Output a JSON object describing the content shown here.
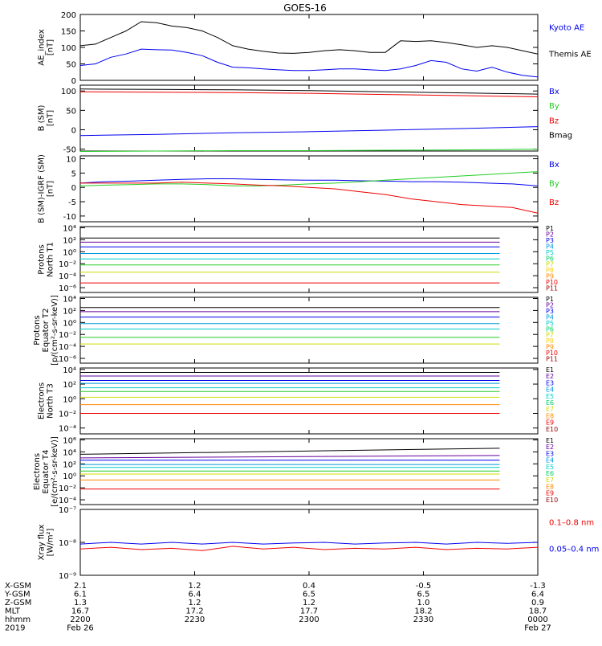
{
  "title": "GOES-16",
  "colors": {
    "black": "#000000",
    "blue": "#0000ee",
    "green": "#22cc22",
    "red": "#ee0000"
  },
  "chart_data": [
    {
      "type": "line",
      "ylabel": [
        "AE_index",
        "[nT]"
      ],
      "ylim": [
        0,
        200
      ],
      "yticks": [
        0,
        50,
        100,
        150,
        200
      ],
      "yticklabels": [
        "0",
        "50",
        "100",
        "150",
        "200"
      ],
      "x": [
        0,
        6,
        12,
        18,
        24,
        30,
        36,
        42,
        48,
        54,
        60,
        66,
        72,
        78,
        84,
        90,
        96,
        102,
        108,
        114,
        120,
        126,
        132,
        138,
        144,
        150,
        156,
        162,
        168,
        174,
        180
      ],
      "legend": [
        {
          "label": "Kyoto AE",
          "color": "#0000ee"
        },
        {
          "label": "Themis AE",
          "color": "#000000"
        }
      ],
      "series": [
        {
          "name": "Themis AE",
          "color": "#000000",
          "values": [
            105,
            110,
            130,
            150,
            178,
            175,
            165,
            160,
            150,
            130,
            105,
            95,
            88,
            83,
            82,
            85,
            90,
            93,
            90,
            85,
            85,
            120,
            118,
            120,
            115,
            108,
            100,
            105,
            100,
            90,
            80
          ]
        },
        {
          "name": "Kyoto AE",
          "color": "#0000ee",
          "values": [
            45,
            50,
            70,
            80,
            95,
            93,
            92,
            85,
            75,
            55,
            40,
            38,
            35,
            32,
            30,
            30,
            32,
            35,
            35,
            32,
            30,
            35,
            45,
            60,
            55,
            35,
            28,
            40,
            25,
            15,
            10
          ]
        }
      ]
    },
    {
      "type": "line",
      "ylabel": [
        "B (SM)",
        "[nT]"
      ],
      "ylim": [
        -55,
        115
      ],
      "yticks": [
        -50,
        0,
        50,
        100
      ],
      "yticklabels": [
        "-50",
        "0",
        "50",
        "100"
      ],
      "x": [
        0,
        30,
        60,
        90,
        120,
        150,
        180
      ],
      "legend": [
        {
          "label": "Bx",
          "color": "#0000ee"
        },
        {
          "label": "By",
          "color": "#22cc22"
        },
        {
          "label": "Bz",
          "color": "#ee0000"
        },
        {
          "label": "Bmag",
          "color": "#000000"
        }
      ],
      "series": [
        {
          "name": "Bmag",
          "color": "#000000",
          "values": [
            105,
            104,
            103,
            101,
            98,
            95,
            92
          ]
        },
        {
          "name": "Bz",
          "color": "#ee0000",
          "values": [
            98,
            97,
            96,
            94,
            91,
            88,
            85
          ]
        },
        {
          "name": "Bx",
          "color": "#0000ee",
          "values": [
            -15,
            -12,
            -8,
            -5,
            -1,
            3,
            8
          ]
        },
        {
          "name": "By",
          "color": "#22cc22",
          "values": [
            -56,
            -55,
            -54,
            -54,
            -53,
            -52,
            -50
          ]
        }
      ]
    },
    {
      "type": "line",
      "ylabel": [
        "B (SM)-IGRF (SM)",
        "[nT]"
      ],
      "ylim": [
        -12,
        11
      ],
      "yticks": [
        -10,
        -5,
        0,
        5,
        10
      ],
      "yticklabels": [
        "-10",
        "-5",
        "0",
        "5",
        "10"
      ],
      "x": [
        0,
        10,
        20,
        30,
        40,
        50,
        60,
        70,
        80,
        90,
        100,
        110,
        120,
        130,
        140,
        150,
        160,
        170,
        180
      ],
      "legend": [
        {
          "label": "Bx",
          "color": "#0000ee"
        },
        {
          "label": "By",
          "color": "#22cc22"
        },
        {
          "label": "Bz",
          "color": "#ee0000"
        }
      ],
      "series": [
        {
          "name": "Bx",
          "color": "#0000ee",
          "values": [
            1.5,
            2,
            2.2,
            2.5,
            2.8,
            3,
            3,
            2.8,
            2.6,
            2.5,
            2.5,
            2.3,
            2.2,
            2,
            2,
            1.8,
            1.5,
            1.2,
            0.5
          ]
        },
        {
          "name": "By",
          "color": "#22cc22",
          "values": [
            0.5,
            0.8,
            1,
            1.2,
            1.2,
            1,
            0.5,
            0.5,
            0.8,
            1.2,
            1.5,
            2,
            2.5,
            3,
            3.5,
            4,
            4.5,
            5,
            5.5
          ]
        },
        {
          "name": "Bz",
          "color": "#ee0000",
          "values": [
            1.5,
            1.5,
            1.5,
            1.5,
            1.8,
            1.5,
            1.2,
            0.8,
            0.5,
            0,
            -0.5,
            -1.5,
            -2.5,
            -4,
            -5,
            -6,
            -6.5,
            -7,
            -9
          ]
        }
      ]
    },
    {
      "type": "line",
      "ylabel": [
        "Protons",
        "North T1"
      ],
      "ylim": [
        -6.8,
        4.2
      ],
      "yticks": [
        -6,
        -4,
        -2,
        0,
        2,
        4
      ],
      "yticklabels": [
        "10⁻⁶",
        "10⁻⁴",
        "10⁻²",
        "10⁰",
        "10²",
        "10⁴"
      ],
      "x": [
        0,
        165
      ],
      "legend": [
        {
          "label": "P1",
          "color": "#000000"
        },
        {
          "label": "P2",
          "color": "#660099"
        },
        {
          "label": "P3",
          "color": "#0000ee"
        },
        {
          "label": "P4",
          "color": "#0099dd"
        },
        {
          "label": "P5",
          "color": "#00cccc"
        },
        {
          "label": "P6",
          "color": "#00cc66"
        },
        {
          "label": "P7",
          "color": "#ccdd00"
        },
        {
          "label": "P8",
          "color": "#ffcc00"
        },
        {
          "label": "P9",
          "color": "#ff8800"
        },
        {
          "label": "P10",
          "color": "#ee0000"
        },
        {
          "label": "P11",
          "color": "#990000"
        }
      ],
      "series": [
        {
          "name": "P1",
          "color": "#000000",
          "values": [
            2.3,
            2.3
          ]
        },
        {
          "name": "P2",
          "color": "#660099",
          "values": [
            1.6,
            1.6
          ]
        },
        {
          "name": "P3",
          "color": "#0000ee",
          "values": [
            0.8,
            0.8
          ]
        },
        {
          "name": "P4",
          "color": "#0099dd",
          "values": [
            -0.3,
            -0.3
          ]
        },
        {
          "name": "P5",
          "color": "#00cccc",
          "values": [
            -1.2,
            -1.2
          ]
        },
        {
          "name": "P6",
          "color": "#22cc22",
          "values": [
            -2.2,
            -2.2
          ]
        },
        {
          "name": "P7",
          "color": "#ccdd00",
          "values": [
            -3.4,
            -3.4
          ]
        },
        {
          "name": "P10",
          "color": "#ee0000",
          "values": [
            -5.2,
            -5.2
          ]
        }
      ]
    },
    {
      "type": "line",
      "ylabel": [
        "Protons",
        "Equator T2",
        "[p/(cm²-s-sr-keV)]"
      ],
      "ylim": [
        -6.8,
        4.2
      ],
      "yticks": [
        -6,
        -4,
        -2,
        0,
        2,
        4
      ],
      "yticklabels": [
        "10⁻⁶",
        "10⁻⁴",
        "10⁻²",
        "10⁰",
        "10²",
        "10⁴"
      ],
      "x": [
        0,
        165
      ],
      "legend": [
        {
          "label": "P1",
          "color": "#000000"
        },
        {
          "label": "P2",
          "color": "#660099"
        },
        {
          "label": "P3",
          "color": "#0000ee"
        },
        {
          "label": "P4",
          "color": "#0099dd"
        },
        {
          "label": "P5",
          "color": "#00cccc"
        },
        {
          "label": "P6",
          "color": "#00cc66"
        },
        {
          "label": "P7",
          "color": "#ccdd00"
        },
        {
          "label": "P8",
          "color": "#ffcc00"
        },
        {
          "label": "P9",
          "color": "#ff8800"
        },
        {
          "label": "P10",
          "color": "#ee0000"
        },
        {
          "label": "P11",
          "color": "#990000"
        }
      ],
      "series": [
        {
          "name": "P1",
          "color": "#000000",
          "values": [
            2.5,
            2.5
          ]
        },
        {
          "name": "P2",
          "color": "#660099",
          "values": [
            1.8,
            1.8
          ]
        },
        {
          "name": "P3",
          "color": "#0000ee",
          "values": [
            0.9,
            0.9
          ]
        },
        {
          "name": "P4",
          "color": "#0099dd",
          "values": [
            -0.2,
            -0.2
          ]
        },
        {
          "name": "P5",
          "color": "#00cccc",
          "values": [
            -1.1,
            -1.1
          ]
        },
        {
          "name": "P6",
          "color": "#22cc22",
          "values": [
            -2.5,
            -2.5
          ]
        },
        {
          "name": "P7",
          "color": "#ccdd00",
          "values": [
            -3.6,
            -3.6
          ]
        }
      ]
    },
    {
      "type": "line",
      "ylabel": [
        "Electrons",
        "North T3"
      ],
      "ylim": [
        -4.8,
        4.2
      ],
      "yticks": [
        -4,
        -2,
        0,
        2,
        4
      ],
      "yticklabels": [
        "10⁻⁴",
        "10⁻²",
        "10⁰",
        "10²",
        "10⁴"
      ],
      "x": [
        0,
        165
      ],
      "legend": [
        {
          "label": "E1",
          "color": "#000000"
        },
        {
          "label": "E2",
          "color": "#660099"
        },
        {
          "label": "E3",
          "color": "#0000ee"
        },
        {
          "label": "E4",
          "color": "#0099dd"
        },
        {
          "label": "E5",
          "color": "#00cccc"
        },
        {
          "label": "E6",
          "color": "#00cc66"
        },
        {
          "label": "E7",
          "color": "#ccdd00"
        },
        {
          "label": "E8",
          "color": "#ff8800"
        },
        {
          "label": "E9",
          "color": "#ee0000"
        },
        {
          "label": "E10",
          "color": "#990000"
        }
      ],
      "series": [
        {
          "name": "E1",
          "color": "#000000",
          "values": [
            3.6,
            3.6
          ]
        },
        {
          "name": "E2",
          "color": "#660099",
          "values": [
            3.1,
            3.1
          ]
        },
        {
          "name": "E3",
          "color": "#0000ee",
          "values": [
            2.5,
            2.5
          ]
        },
        {
          "name": "E4",
          "color": "#0099dd",
          "values": [
            2.1,
            2.1
          ]
        },
        {
          "name": "E5",
          "color": "#00cccc",
          "values": [
            1.5,
            1.5
          ]
        },
        {
          "name": "E6",
          "color": "#22cc22",
          "values": [
            1.0,
            1.0
          ]
        },
        {
          "name": "E7",
          "color": "#ccdd00",
          "values": [
            0.2,
            0.2
          ]
        },
        {
          "name": "E8",
          "color": "#ff8800",
          "values": [
            -0.8,
            -0.8
          ]
        },
        {
          "name": "E9",
          "color": "#ee0000",
          "values": [
            -2.0,
            -2.0
          ]
        }
      ]
    },
    {
      "type": "line",
      "ylabel": [
        "Electrons",
        "Equator T4",
        "[e/(cm²-s-sr-keV)]"
      ],
      "ylim": [
        -4.8,
        6.2
      ],
      "yticks": [
        -4,
        -2,
        0,
        2,
        4,
        6
      ],
      "yticklabels": [
        "10⁻⁴",
        "10⁻²",
        "10⁰",
        "10²",
        "10⁴",
        "10⁶"
      ],
      "x": [
        0,
        165
      ],
      "legend": [
        {
          "label": "E1",
          "color": "#000000"
        },
        {
          "label": "E2",
          "color": "#660099"
        },
        {
          "label": "E3",
          "color": "#0000ee"
        },
        {
          "label": "E4",
          "color": "#0099dd"
        },
        {
          "label": "E5",
          "color": "#00cccc"
        },
        {
          "label": "E6",
          "color": "#00cc66"
        },
        {
          "label": "E7",
          "color": "#ccdd00"
        },
        {
          "label": "E8",
          "color": "#ff8800"
        },
        {
          "label": "E9",
          "color": "#ee0000"
        },
        {
          "label": "E10",
          "color": "#990000"
        }
      ],
      "series": [
        {
          "name": "E1",
          "color": "#000000",
          "values": [
            3.6,
            4.6
          ]
        },
        {
          "name": "E2",
          "color": "#660099",
          "values": [
            3.0,
            3.4
          ]
        },
        {
          "name": "E3",
          "color": "#0000ee",
          "values": [
            2.6,
            2.6
          ]
        },
        {
          "name": "E4",
          "color": "#0099dd",
          "values": [
            1.9,
            1.9
          ]
        },
        {
          "name": "E5",
          "color": "#00cccc",
          "values": [
            1.4,
            1.4
          ]
        },
        {
          "name": "E6",
          "color": "#22cc22",
          "values": [
            0.8,
            0.8
          ]
        },
        {
          "name": "E7",
          "color": "#ccdd00",
          "values": [
            0.3,
            0.3
          ]
        },
        {
          "name": "E8",
          "color": "#ff8800",
          "values": [
            -0.7,
            -0.7
          ]
        },
        {
          "name": "E9",
          "color": "#ee0000",
          "values": [
            -2.2,
            -2.2
          ]
        }
      ]
    },
    {
      "type": "line",
      "ylabel": [
        "Xray flux",
        "[W/m²]"
      ],
      "ylim": [
        -9,
        -7
      ],
      "yticks": [
        -9,
        -8,
        -7
      ],
      "yticklabels": [
        "10⁻⁹",
        "10⁻⁸",
        "10⁻⁷"
      ],
      "x": [
        0,
        12,
        24,
        36,
        48,
        60,
        72,
        84,
        96,
        108,
        120,
        132,
        144,
        156,
        168,
        180
      ],
      "legend": [
        {
          "label": "0.1–0.8 nm",
          "color": "#ee0000"
        },
        {
          "label": "0.05–0.4 nm",
          "color": "#0000ee"
        }
      ],
      "series": [
        {
          "name": "0.05–0.4 nm",
          "color": "#0000ee",
          "values": [
            -8.05,
            -8.0,
            -8.05,
            -8.0,
            -8.05,
            -8.0,
            -8.05,
            -8.02,
            -8.0,
            -8.05,
            -8.02,
            -8.0,
            -8.05,
            -8.0,
            -8.03,
            -8.0
          ]
        },
        {
          "name": "0.1–0.8 nm",
          "color": "#ee0000",
          "values": [
            -8.2,
            -8.15,
            -8.22,
            -8.18,
            -8.25,
            -8.12,
            -8.2,
            -8.15,
            -8.22,
            -8.18,
            -8.2,
            -8.15,
            -8.22,
            -8.18,
            -8.2,
            -8.15
          ]
        }
      ]
    }
  ],
  "xaxis": {
    "tick_positions": [
      0,
      45,
      90,
      135,
      180
    ],
    "rows": [
      {
        "label": "X-GSM",
        "values": [
          "2.1",
          "1.2",
          "0.4",
          "-0.5",
          "-1.3"
        ]
      },
      {
        "label": "Y-GSM",
        "values": [
          "6.1",
          "6.4",
          "6.5",
          "6.5",
          "6.4"
        ]
      },
      {
        "label": "Z-GSM",
        "values": [
          "1.3",
          "1.2",
          "1.2",
          "1.0",
          "0.9"
        ]
      },
      {
        "label": "MLT",
        "values": [
          "16.7",
          "17.2",
          "17.7",
          "18.2",
          "18.7"
        ]
      },
      {
        "label": "hhmm",
        "values": [
          "2200",
          "2230",
          "2300",
          "2330",
          "0000"
        ]
      },
      {
        "label": "2019",
        "values": [
          "Feb 26",
          "",
          "",
          "",
          "Feb 27"
        ]
      }
    ]
  }
}
